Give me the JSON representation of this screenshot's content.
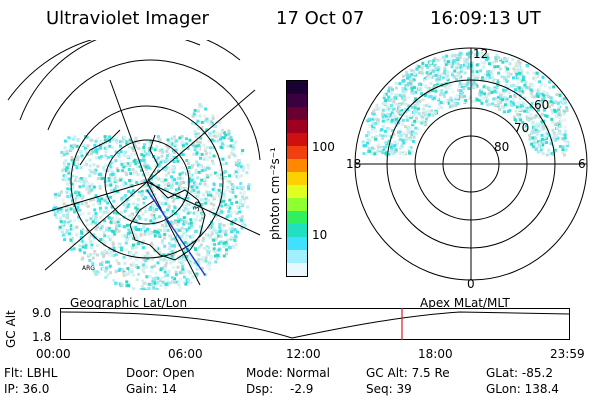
{
  "header": {
    "instrument": "Ultraviolet Imager",
    "date": "17 Oct 07",
    "time": "16:09:13 UT"
  },
  "left_panel": {
    "caption": "Geographic Lat/Lon",
    "coast_labels": [
      "30",
      "ARG"
    ]
  },
  "colorbar": {
    "unit_label": "photon cm⁻²s⁻¹",
    "ticks": [
      "100",
      "10"
    ],
    "colors": [
      "#1a0033",
      "#3a0040",
      "#6a0030",
      "#a00020",
      "#d01010",
      "#f04010",
      "#ff8800",
      "#ffd000",
      "#e0ff20",
      "#90ff30",
      "#30f060",
      "#20e0c0",
      "#40e0ff",
      "#a0f0ff",
      "#e8f8ff"
    ]
  },
  "right_panel": {
    "caption": "Apex MLat/MLT",
    "mlt_labels": [
      "12",
      "18",
      "6",
      "0"
    ],
    "mlat_labels": [
      "60",
      "70",
      "80"
    ]
  },
  "timeline": {
    "y_axis_label": "GC Alt",
    "y_ticks": [
      "9.0",
      "1.8"
    ],
    "x_ticks": [
      "00:00",
      "06:00",
      "12:00",
      "18:00",
      "23:59"
    ],
    "marker_color": "#d02020"
  },
  "status": {
    "flt": "Flt: LBHL",
    "ip": "IP: 36.0",
    "door": "Door: Open",
    "gain": "Gain: 14",
    "mode": "Mode: Normal",
    "dsp_label": "Dsp:",
    "dsp_value": "-2.9",
    "gc_alt": "GC Alt: 7.5 Re",
    "seq": "Seq: 39",
    "glat": "GLat: -85.2",
    "glon": "GLon: 138.4"
  }
}
